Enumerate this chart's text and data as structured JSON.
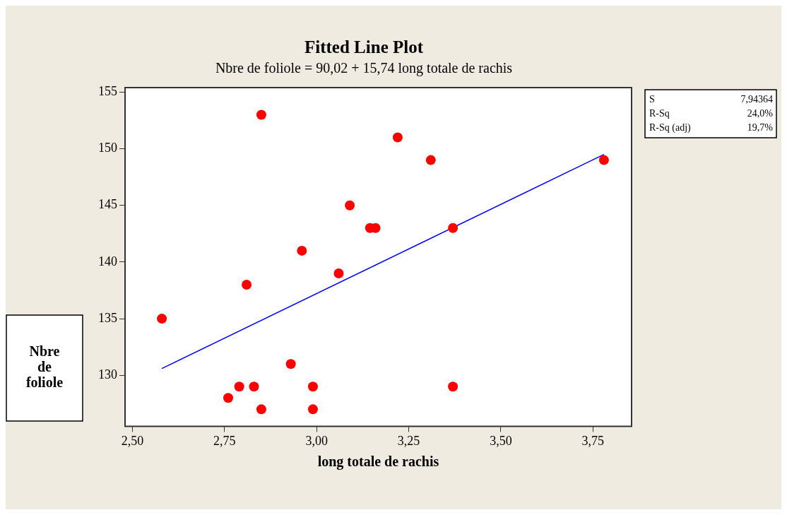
{
  "chart_data": {
    "type": "scatter",
    "title": "Fitted Line Plot",
    "subtitle": "Nbre de foliole = 90,02 + 15,74 long totale de rachis",
    "xlabel": "long totale de rachis",
    "ylabel": "Nbre de foliole",
    "x": [
      2.58,
      2.85,
      2.81,
      2.96,
      3.09,
      3.06,
      3.145,
      3.16,
      2.93,
      2.79,
      2.83,
      2.99,
      2.76,
      2.85,
      2.99,
      3.22,
      3.31,
      3.37,
      3.37,
      3.78
    ],
    "series": [
      {
        "color": "#ff0000",
        "marker": "circle",
        "values": [
          135,
          153,
          138,
          141,
          145,
          139,
          143,
          143,
          131,
          129,
          129,
          129,
          128,
          127,
          127,
          151,
          149,
          143,
          129,
          149
        ]
      },
      {
        "type": "line",
        "color": "#0000ff",
        "marker": "none",
        "line_style": "solid",
        "x": [
          2.58,
          3.78
        ],
        "values": [
          130.6,
          149.5
        ]
      }
    ],
    "xlim": [
      2.48,
      3.855
    ],
    "xticks": [
      {
        "value": 2.5,
        "label": "2,50"
      },
      {
        "value": 2.75,
        "label": "2,75"
      },
      {
        "value": 3,
        "label": "3,00"
      },
      {
        "value": 3.25,
        "label": "3,25"
      },
      {
        "value": 3.5,
        "label": "3,50"
      },
      {
        "value": 3.75,
        "label": "3,75"
      }
    ],
    "ylim": [
      125.5,
      155.4
    ],
    "yticks": [
      130,
      135,
      140,
      145,
      150,
      155
    ],
    "grid": false,
    "legend": false,
    "annotations": [
      "S 7,94364",
      "R-Sq 24,0%",
      "R-Sq (adj) 19,7%"
    ]
  }
}
